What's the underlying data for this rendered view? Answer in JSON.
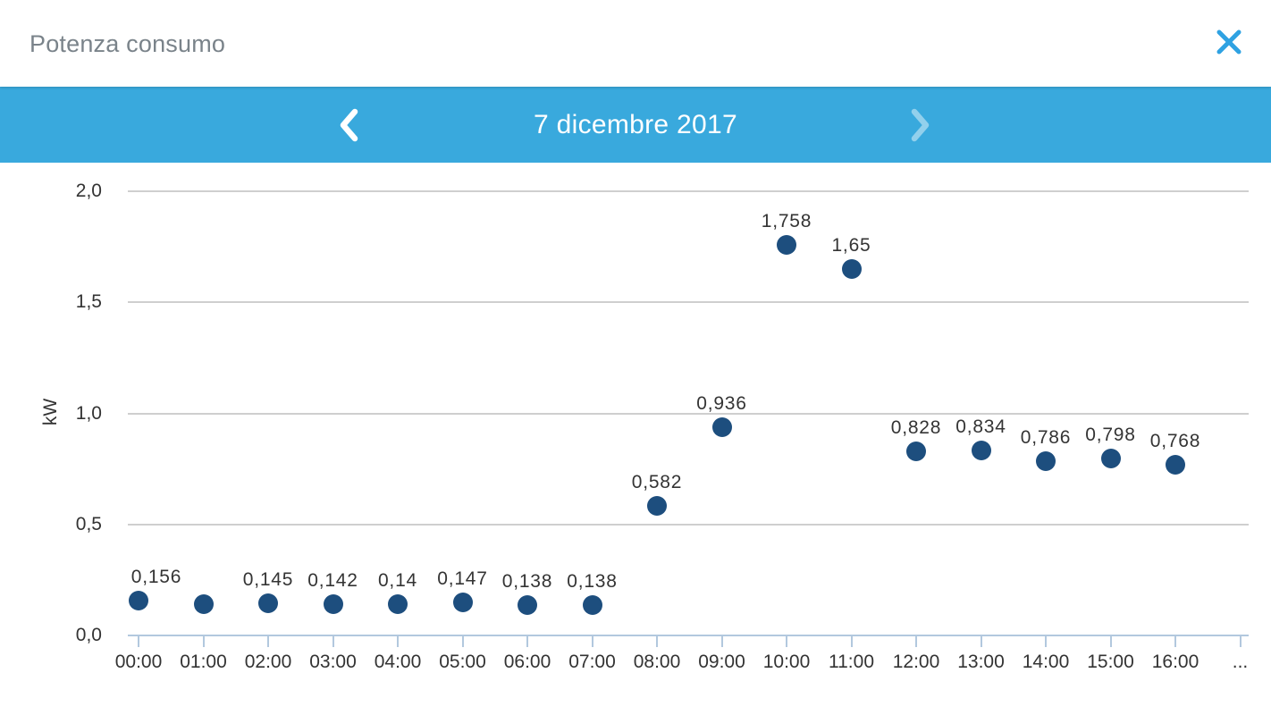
{
  "header": {
    "title": "Potenza consumo"
  },
  "nav": {
    "date_label": "7 dicembre 2017",
    "prev_icon": "chevron-left",
    "next_icon": "chevron-right",
    "next_disabled": true
  },
  "colors": {
    "nav_bar_blue": "#39a9dd",
    "point_blue": "#1d4e7e",
    "close_icon_blue": "#2fa2e2",
    "gridline_gray": "#cfcfcf",
    "axis_light_blue": "#b2c8de",
    "title_gray": "#7a838a",
    "tick_label": "#333333",
    "value_label": "#343434",
    "date_text": "#ffffff"
  },
  "chart_data": {
    "type": "scatter",
    "title": "",
    "xlabel": "",
    "ylabel": "kW",
    "ylim": [
      0,
      2.0
    ],
    "grid": true,
    "legend": false,
    "y_ticks": [
      {
        "value": 0.0,
        "label": "0,0"
      },
      {
        "value": 0.5,
        "label": "0,5"
      },
      {
        "value": 1.0,
        "label": "1,0"
      },
      {
        "value": 1.5,
        "label": "1,5"
      },
      {
        "value": 2.0,
        "label": "2,0"
      }
    ],
    "x_tick_labels": [
      "00:00",
      "01:00",
      "02:00",
      "03:00",
      "04:00",
      "05:00",
      "06:00",
      "07:00",
      "08:00",
      "09:00",
      "10:00",
      "11:00",
      "12:00",
      "13:00",
      "14:00",
      "15:00",
      "16:00",
      "..."
    ],
    "points": [
      {
        "time": "00:00",
        "x_index": 0,
        "value": 0.156,
        "label": "0,156"
      },
      {
        "time": "01:00",
        "x_index": 1,
        "value": 0.14,
        "label": ""
      },
      {
        "time": "02:00",
        "x_index": 2,
        "value": 0.145,
        "label": "0,145"
      },
      {
        "time": "03:00",
        "x_index": 3,
        "value": 0.142,
        "label": "0,142"
      },
      {
        "time": "04:00",
        "x_index": 4,
        "value": 0.14,
        "label": "0,14"
      },
      {
        "time": "05:00",
        "x_index": 5,
        "value": 0.147,
        "label": "0,147"
      },
      {
        "time": "06:00",
        "x_index": 6,
        "value": 0.138,
        "label": "0,138"
      },
      {
        "time": "07:00",
        "x_index": 7,
        "value": 0.138,
        "label": "0,138"
      },
      {
        "time": "08:00",
        "x_index": 8,
        "value": 0.582,
        "label": "0,582"
      },
      {
        "time": "09:00",
        "x_index": 9,
        "value": 0.936,
        "label": "0,936"
      },
      {
        "time": "10:00",
        "x_index": 10,
        "value": 1.758,
        "label": "1,758"
      },
      {
        "time": "11:00",
        "x_index": 11,
        "value": 1.65,
        "label": "1,65"
      },
      {
        "time": "12:00",
        "x_index": 12,
        "value": 0.828,
        "label": "0,828"
      },
      {
        "time": "13:00",
        "x_index": 13,
        "value": 0.834,
        "label": "0,834"
      },
      {
        "time": "14:00",
        "x_index": 14,
        "value": 0.786,
        "label": "0,786"
      },
      {
        "time": "15:00",
        "x_index": 15,
        "value": 0.798,
        "label": "0,798"
      },
      {
        "time": "16:00",
        "x_index": 16,
        "value": 0.768,
        "label": "0,768"
      }
    ]
  }
}
